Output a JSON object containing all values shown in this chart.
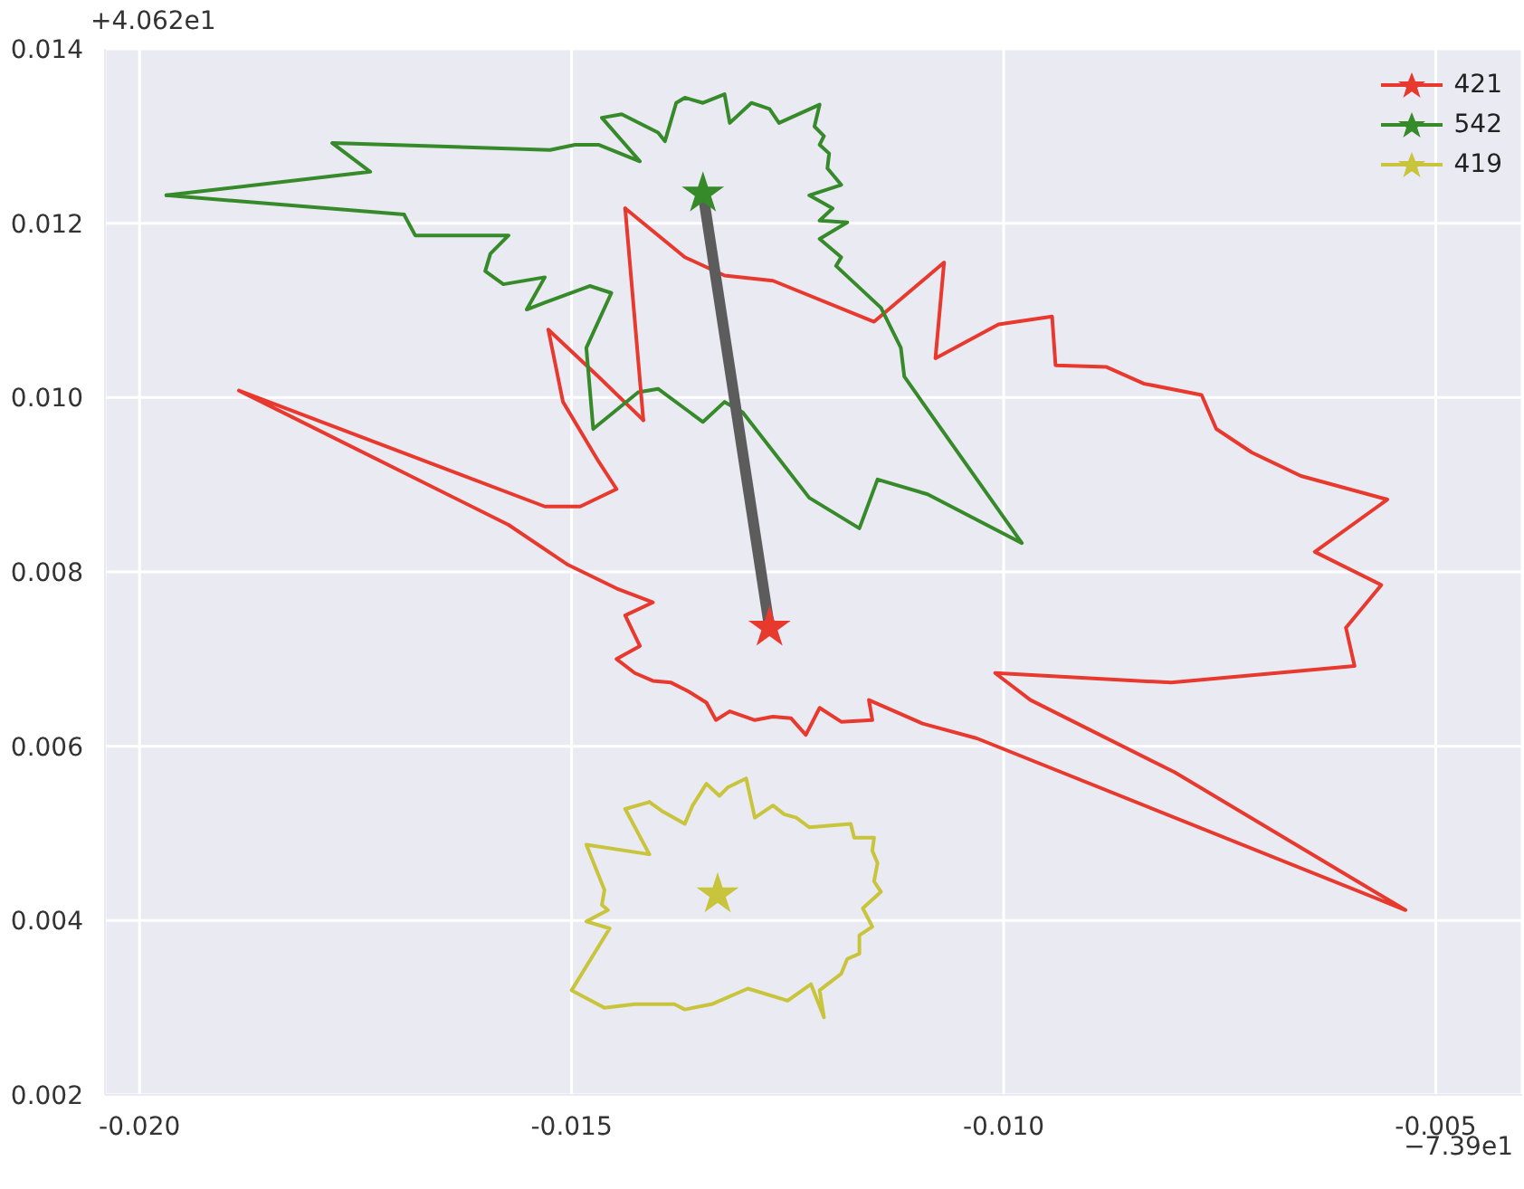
{
  "chart_data": {
    "type": "line",
    "xlim": [
      -0.0204,
      -0.004
    ],
    "ylim": [
      0.002,
      0.014
    ],
    "xticks": [
      {
        "value": -0.02,
        "label": "-0.020"
      },
      {
        "value": -0.015,
        "label": "-0.015"
      },
      {
        "value": -0.01,
        "label": "-0.010"
      },
      {
        "value": -0.005,
        "label": "-0.005"
      }
    ],
    "yticks": [
      {
        "value": 0.002,
        "label": "0.002"
      },
      {
        "value": 0.004,
        "label": "0.004"
      },
      {
        "value": 0.006,
        "label": "0.006"
      },
      {
        "value": 0.008,
        "label": "0.008"
      },
      {
        "value": 0.01,
        "label": "0.010"
      },
      {
        "value": 0.012,
        "label": "0.012"
      },
      {
        "value": 0.014,
        "label": "0.014"
      }
    ],
    "grid": true,
    "legend": "top right",
    "annotations": [
      "+4.062e1",
      "−7.39e1"
    ],
    "series": [
      {
        "name": "421",
        "type": "line",
        "color": "#e8392f",
        "x": [
          -0.01438,
          -0.01369,
          -0.01323,
          -0.01267,
          -0.0115,
          -0.01069,
          -0.01079,
          -0.01006,
          -0.00944,
          -0.0094,
          -0.00881,
          -0.00838,
          -0.00771,
          -0.00754,
          -0.00713,
          -0.00656,
          -0.00556,
          -0.0064,
          -0.00563,
          -0.00604,
          -0.00594,
          -0.00806,
          -0.0101,
          -0.00969,
          -0.00802,
          -0.00535,
          -0.01031,
          -0.01094,
          -0.01156,
          -0.01152,
          -0.01188,
          -0.01213,
          -0.01229,
          -0.01246,
          -0.01267,
          -0.01288,
          -0.01317,
          -0.01333,
          -0.01344,
          -0.01365,
          -0.01385,
          -0.01406,
          -0.01427,
          -0.01448,
          -0.01421,
          -0.01438,
          -0.01406,
          -0.01448,
          -0.01504,
          -0.01573,
          -0.01885,
          -0.01531,
          -0.0149,
          -0.01448,
          -0.01469,
          -0.0151,
          -0.01527,
          -0.01469,
          -0.01417
        ],
        "values": [
          0.01217,
          0.01161,
          0.0114,
          0.01134,
          0.01087,
          0.01155,
          0.01045,
          0.01084,
          0.01093,
          0.01037,
          0.01035,
          0.01016,
          0.01003,
          0.00964,
          0.00937,
          0.0091,
          0.00883,
          0.00823,
          0.00785,
          0.00736,
          0.00692,
          0.00673,
          0.00684,
          0.00653,
          0.0057,
          0.00412,
          0.00609,
          0.00626,
          0.00653,
          0.0063,
          0.00628,
          0.00644,
          0.00613,
          0.00632,
          0.00634,
          0.0063,
          0.0064,
          0.0063,
          0.0065,
          0.00663,
          0.00673,
          0.00675,
          0.00684,
          0.007,
          0.00715,
          0.0075,
          0.00765,
          0.00781,
          0.00808,
          0.00854,
          0.01008,
          0.00875,
          0.00875,
          0.00895,
          0.00927,
          0.00995,
          0.01078,
          0.01024,
          0.00974
        ]
      },
      {
        "name": "542",
        "type": "line",
        "color": "#368a2a",
        "x": [
          -0.01969,
          -0.01733,
          -0.01777,
          -0.01525,
          -0.01496,
          -0.01469,
          -0.01421,
          -0.01465,
          -0.01442,
          -0.014,
          -0.01392,
          -0.01379,
          -0.01369,
          -0.01348,
          -0.01323,
          -0.01317,
          -0.01292,
          -0.01271,
          -0.0126,
          -0.01213,
          -0.01219,
          -0.01208,
          -0.01213,
          -0.01202,
          -0.01204,
          -0.01188,
          -0.01225,
          -0.01198,
          -0.01213,
          -0.01181,
          -0.01213,
          -0.01188,
          -0.01194,
          -0.01142,
          -0.01119,
          -0.01115,
          -0.00979,
          -0.01088,
          -0.01146,
          -0.01167,
          -0.01225,
          -0.01302,
          -0.01323,
          -0.01348,
          -0.014,
          -0.01423,
          -0.01475,
          -0.01483,
          -0.01454,
          -0.01479,
          -0.01531,
          -0.01552,
          -0.01531,
          -0.01579,
          -0.016,
          -0.01594,
          -0.01573,
          -0.01681,
          -0.01694
        ],
        "values": [
          0.01232,
          0.01259,
          0.01292,
          0.01284,
          0.0129,
          0.0129,
          0.01271,
          0.01321,
          0.01325,
          0.01304,
          0.01294,
          0.01338,
          0.01344,
          0.01338,
          0.01348,
          0.01315,
          0.01338,
          0.01331,
          0.01315,
          0.01336,
          0.01311,
          0.013,
          0.0129,
          0.0128,
          0.01263,
          0.01244,
          0.01232,
          0.01217,
          0.01203,
          0.01201,
          0.01182,
          0.01161,
          0.01151,
          0.01103,
          0.01057,
          0.01024,
          0.00833,
          0.00889,
          0.00906,
          0.0085,
          0.00885,
          0.00983,
          0.00995,
          0.00972,
          0.0101,
          0.01006,
          0.00964,
          0.01057,
          0.0112,
          0.01128,
          0.01109,
          0.01101,
          0.01138,
          0.0113,
          0.01145,
          0.01165,
          0.01186,
          0.01186,
          0.0121
        ]
      },
      {
        "name": "419",
        "type": "line",
        "color": "#c8c43c",
        "x": [
          -0.01438,
          -0.0141,
          -0.01483,
          -0.01462,
          -0.01465,
          -0.01458,
          -0.01483,
          -0.01456,
          -0.015,
          -0.01462,
          -0.01427,
          -0.01381,
          -0.01369,
          -0.01338,
          -0.01296,
          -0.0125,
          -0.01223,
          -0.01208,
          -0.01213,
          -0.01188,
          -0.01181,
          -0.01167,
          -0.01167,
          -0.01152,
          -0.01163,
          -0.01142,
          -0.0115,
          -0.01146,
          -0.01152,
          -0.0115,
          -0.01173,
          -0.01177,
          -0.01225,
          -0.0124,
          -0.01254,
          -0.01267,
          -0.01288,
          -0.01298,
          -0.01319,
          -0.01329,
          -0.01344,
          -0.0136,
          -0.01369,
          -0.01396,
          -0.0141
        ],
        "values": [
          0.00528,
          0.00476,
          0.00487,
          0.00435,
          0.00418,
          0.00412,
          0.00399,
          0.00391,
          0.0032,
          0.003,
          0.00304,
          0.00304,
          0.00298,
          0.00304,
          0.00322,
          0.00308,
          0.00327,
          0.00289,
          0.0032,
          0.00339,
          0.00356,
          0.00362,
          0.00383,
          0.00393,
          0.00414,
          0.00433,
          0.00445,
          0.00466,
          0.0048,
          0.00495,
          0.00495,
          0.00511,
          0.00507,
          0.00518,
          0.00522,
          0.00532,
          0.00518,
          0.00563,
          0.00553,
          0.00543,
          0.00557,
          0.00532,
          0.00511,
          0.00526,
          0.00536
        ]
      },
      {
        "type": "line",
        "color": "#e8392f",
        "x": [
          -0.01417,
          -0.01438
        ],
        "values": [
          0.00974,
          0.01217
        ]
      },
      {
        "type": "line",
        "color": "#368a2a",
        "x": [
          -0.01694,
          -0.01969
        ],
        "values": [
          0.0121,
          0.01232
        ]
      },
      {
        "type": "line",
        "color": "#c8c43c",
        "x": [
          -0.0141,
          -0.01438
        ],
        "values": [
          0.00536,
          0.00528
        ]
      },
      {
        "color": "#5c5c5c",
        "x": [
          -0.01348,
          -0.01271
        ],
        "values": [
          0.01234,
          0.00736
        ]
      },
      {
        "type": "scatter",
        "marker": "star",
        "color": "#e8392f",
        "x": [
          -0.01271
        ],
        "values": [
          0.00736
        ]
      },
      {
        "type": "scatter",
        "marker": "star",
        "color": "#368a2a",
        "x": [
          -0.01348
        ],
        "values": [
          0.01234
        ]
      },
      {
        "type": "scatter",
        "marker": "star",
        "color": "#c8c43c",
        "x": [
          -0.01331
        ],
        "values": [
          0.0043
        ]
      }
    ]
  }
}
